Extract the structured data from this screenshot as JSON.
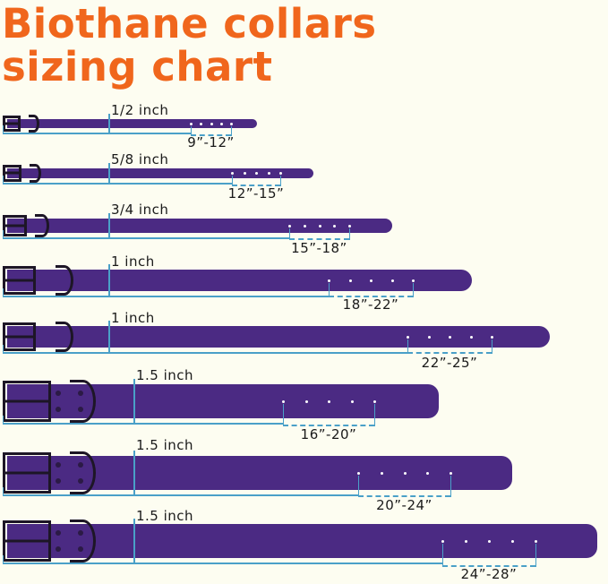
{
  "title_line1": "Biothane collars",
  "title_line2": "sizing chart",
  "colors": {
    "title": "#f0661c",
    "collar": "#4b2a83",
    "measure_line": "#4aa0c8",
    "background": "#fdfdf1"
  },
  "collars": [
    {
      "width": "1/2 inch",
      "range": "9”-12”",
      "holes": 5
    },
    {
      "width": "5/8 inch",
      "range": "12”-15”",
      "holes": 5
    },
    {
      "width": "3/4 inch",
      "range": "15”-18”",
      "holes": 5
    },
    {
      "width": "1 inch",
      "range": "18”-22”",
      "holes": 5
    },
    {
      "width": "1 inch",
      "range": "22”-25”",
      "holes": 5
    },
    {
      "width": "1.5 inch",
      "range": "16”-20”",
      "holes": 5
    },
    {
      "width": "1.5 inch",
      "range": "20”-24”",
      "holes": 5
    },
    {
      "width": "1.5 inch",
      "range": "24”-28”",
      "holes": 5
    }
  ]
}
